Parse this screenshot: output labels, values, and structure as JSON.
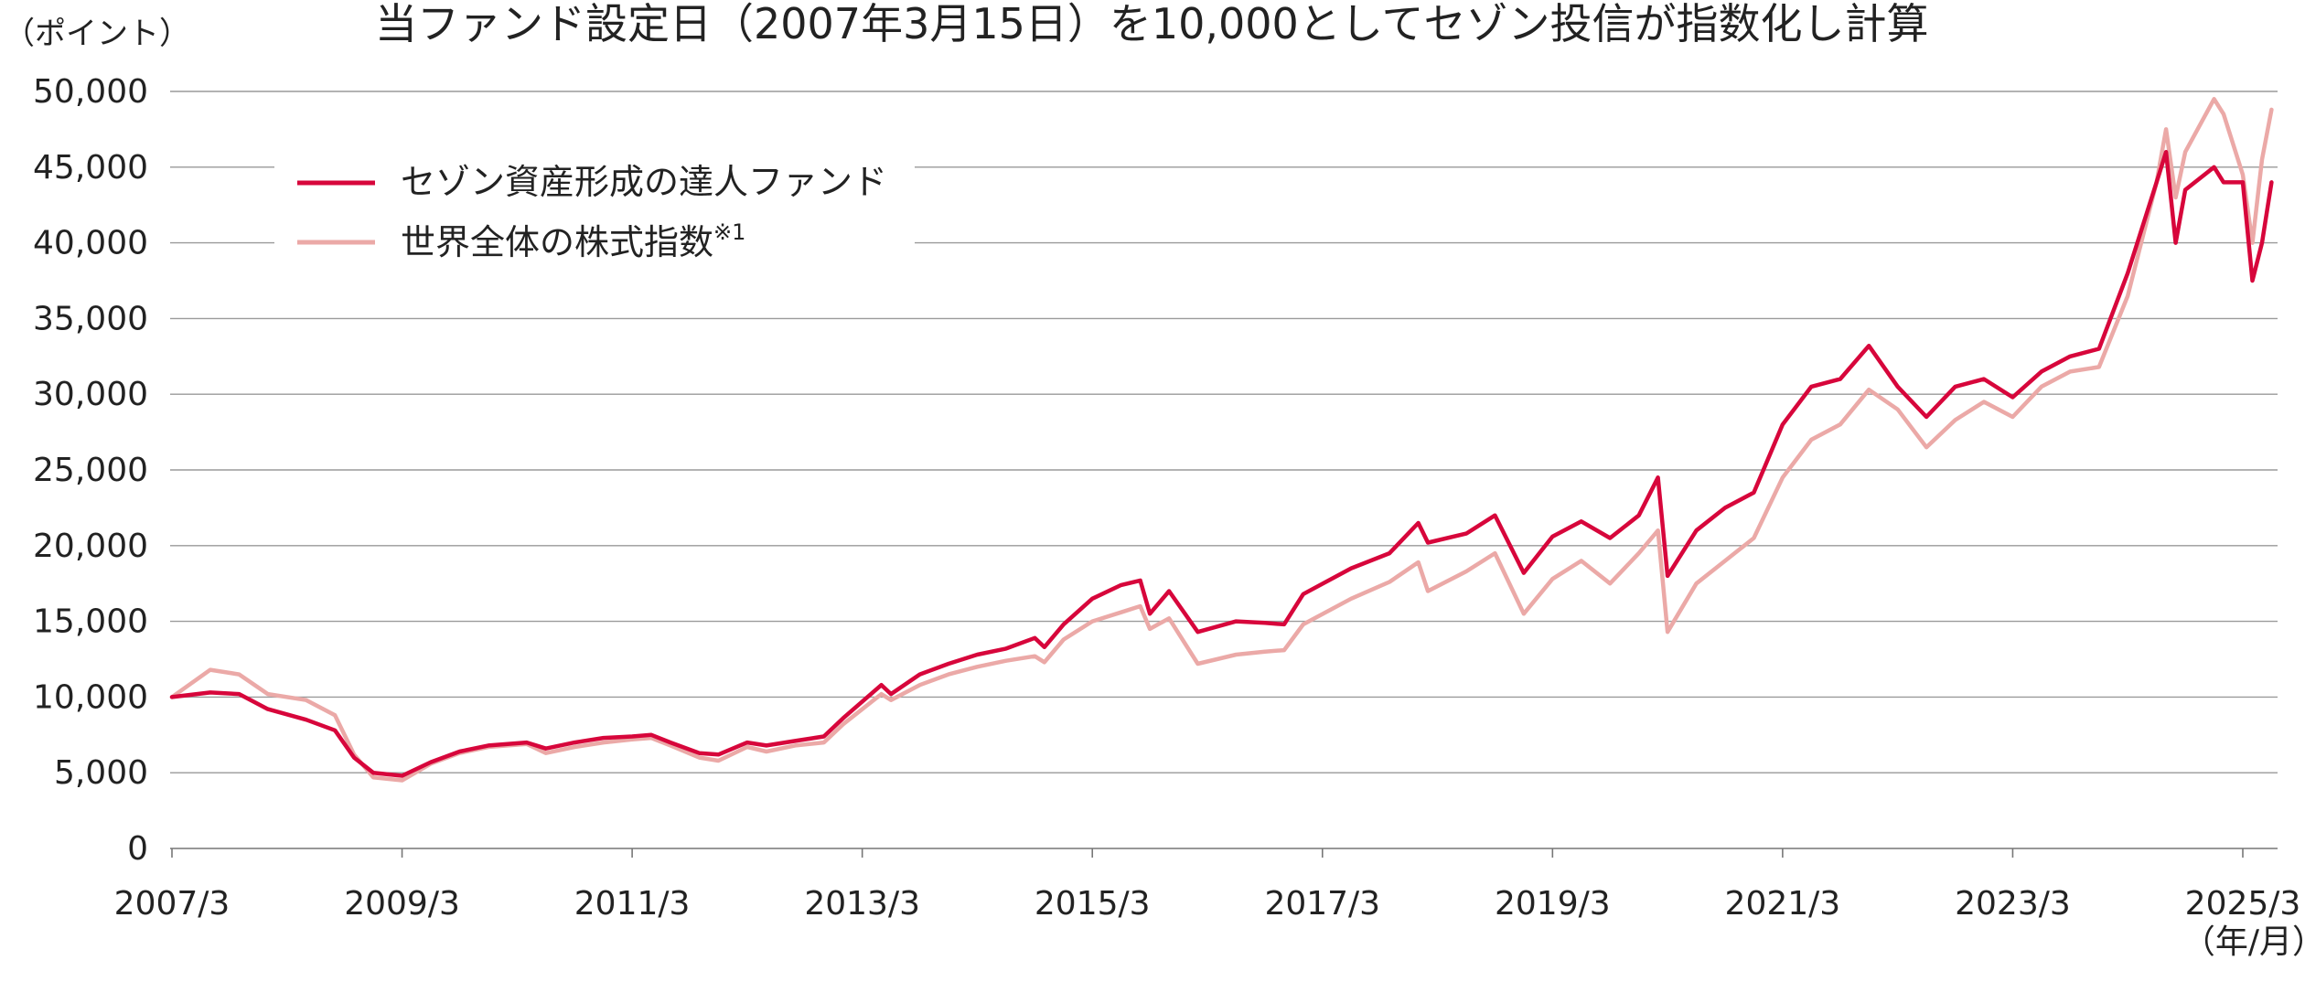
{
  "chart_data": {
    "type": "line",
    "title": "当ファンド設定日（2007年3月15日）を10,000としてセゾン投信が指数化し計算",
    "ylabel": "（ポイント）",
    "xlabel": "（年/月）",
    "ylim": [
      0,
      50000
    ],
    "yticks": [
      "0",
      "5,000",
      "10,000",
      "15,000",
      "20,000",
      "25,000",
      "30,000",
      "35,000",
      "40,000",
      "45,000",
      "50,000"
    ],
    "xticks": [
      "2007/3",
      "2009/3",
      "2011/3",
      "2013/3",
      "2015/3",
      "2017/3",
      "2019/3",
      "2021/3",
      "2023/3",
      "2025/3"
    ],
    "grid": true,
    "legend_position": "top-left",
    "series": [
      {
        "name": "セゾン資産形成の達人ファンド",
        "color": "#d7063b",
        "x": [
          "2007/3",
          "2007/7",
          "2007/10",
          "2008/1",
          "2008/5",
          "2008/8",
          "2008/10",
          "2008/12",
          "2009/3",
          "2009/6",
          "2009/9",
          "2009/12",
          "2010/4",
          "2010/6",
          "2010/9",
          "2010/12",
          "2011/3",
          "2011/5",
          "2011/7",
          "2011/10",
          "2011/12",
          "2012/3",
          "2012/5",
          "2012/8",
          "2012/11",
          "2013/1",
          "2013/5",
          "2013/6",
          "2013/9",
          "2013/12",
          "2014/3",
          "2014/6",
          "2014/9",
          "2014/10",
          "2014/12",
          "2015/3",
          "2015/6",
          "2015/8",
          "2015/9",
          "2015/11",
          "2016/2",
          "2016/6",
          "2016/9",
          "2016/11",
          "2017/1",
          "2017/6",
          "2017/10",
          "2018/1",
          "2018/2",
          "2018/6",
          "2018/9",
          "2018/12",
          "2019/3",
          "2019/6",
          "2019/9",
          "2019/12",
          "2020/2",
          "2020/3",
          "2020/6",
          "2020/9",
          "2020/12",
          "2021/3",
          "2021/6",
          "2021/9",
          "2021/12",
          "2022/3",
          "2022/6",
          "2022/9",
          "2022/12",
          "2023/3",
          "2023/6",
          "2023/9",
          "2023/12",
          "2024/3",
          "2024/6",
          "2024/7",
          "2024/8",
          "2024/9",
          "2024/12",
          "2025/1",
          "2025/3",
          "2025/4",
          "2025/5",
          "2025/6"
        ],
        "values": [
          10000,
          10300,
          10200,
          9200,
          8500,
          7800,
          6000,
          5000,
          4800,
          5700,
          6400,
          6800,
          7000,
          6600,
          7000,
          7300,
          7400,
          7500,
          7000,
          6300,
          6200,
          7000,
          6800,
          7100,
          7400,
          8600,
          10800,
          10200,
          11500,
          12200,
          12800,
          13200,
          13900,
          13300,
          14800,
          16500,
          17400,
          17700,
          15500,
          17000,
          14300,
          15000,
          14900,
          14800,
          16800,
          18500,
          19500,
          21500,
          20200,
          20800,
          22000,
          18200,
          20600,
          21600,
          20500,
          22000,
          24500,
          18000,
          21000,
          22500,
          23500,
          28000,
          30500,
          31000,
          33200,
          30500,
          28500,
          30500,
          31000,
          29800,
          31500,
          32500,
          33000,
          38000,
          44000,
          46000,
          40000,
          43500,
          45000,
          44000,
          44000,
          37500,
          40000,
          44000
        ]
      },
      {
        "name": "世界全体の株式指数",
        "note": "※1",
        "color": "#eba9a7",
        "x": [
          "2007/3",
          "2007/7",
          "2007/10",
          "2008/1",
          "2008/5",
          "2008/8",
          "2008/10",
          "2008/12",
          "2009/3",
          "2009/6",
          "2009/9",
          "2009/12",
          "2010/4",
          "2010/6",
          "2010/9",
          "2010/12",
          "2011/3",
          "2011/5",
          "2011/7",
          "2011/10",
          "2011/12",
          "2012/3",
          "2012/5",
          "2012/8",
          "2012/11",
          "2013/1",
          "2013/5",
          "2013/6",
          "2013/9",
          "2013/12",
          "2014/3",
          "2014/6",
          "2014/9",
          "2014/10",
          "2014/12",
          "2015/3",
          "2015/6",
          "2015/8",
          "2015/9",
          "2015/11",
          "2016/2",
          "2016/6",
          "2016/9",
          "2016/11",
          "2017/1",
          "2017/6",
          "2017/10",
          "2018/1",
          "2018/2",
          "2018/6",
          "2018/9",
          "2018/12",
          "2019/3",
          "2019/6",
          "2019/9",
          "2019/12",
          "2020/2",
          "2020/3",
          "2020/6",
          "2020/9",
          "2020/12",
          "2021/3",
          "2021/6",
          "2021/9",
          "2021/12",
          "2022/3",
          "2022/6",
          "2022/9",
          "2022/12",
          "2023/3",
          "2023/6",
          "2023/9",
          "2023/12",
          "2024/3",
          "2024/6",
          "2024/7",
          "2024/8",
          "2024/9",
          "2024/12",
          "2025/1",
          "2025/3",
          "2025/4",
          "2025/5",
          "2025/6"
        ],
        "values": [
          10000,
          11800,
          11500,
          10200,
          9800,
          8800,
          6200,
          4700,
          4500,
          5600,
          6300,
          6700,
          6900,
          6300,
          6700,
          7000,
          7200,
          7300,
          6800,
          6000,
          5800,
          6700,
          6400,
          6800,
          7000,
          8200,
          10200,
          9800,
          10800,
          11500,
          12000,
          12400,
          12700,
          12300,
          13800,
          15000,
          15600,
          16000,
          14500,
          15200,
          12200,
          12800,
          13000,
          13100,
          14800,
          16500,
          17600,
          18900,
          17000,
          18300,
          19500,
          15500,
          17800,
          19000,
          17500,
          19500,
          21000,
          14300,
          17500,
          19000,
          20500,
          24500,
          27000,
          28000,
          30300,
          29000,
          26500,
          28300,
          29500,
          28500,
          30500,
          31500,
          31800,
          36500,
          44000,
          47500,
          43000,
          46000,
          49500,
          48500,
          44500,
          40000,
          45500,
          48800
        ]
      }
    ]
  }
}
